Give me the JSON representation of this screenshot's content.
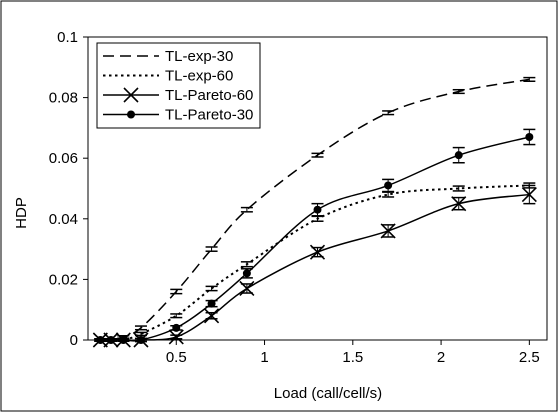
{
  "chart_data": {
    "type": "line",
    "title": "",
    "xlabel": "Load (call/cell/s)",
    "ylabel": "HDP",
    "xlim": [
      0,
      2.6
    ],
    "ylim": [
      0,
      0.1
    ],
    "x_ticks": [
      "0.5",
      "1",
      "1.5",
      "2",
      "2.5"
    ],
    "x_tick_values": [
      0.5,
      1,
      1.5,
      2,
      2.5
    ],
    "y_ticks": [
      "0",
      "0.02",
      "0.04",
      "0.06",
      "0.08",
      "0.1"
    ],
    "y_tick_values": [
      0,
      0.02,
      0.04,
      0.06,
      0.08,
      0.1
    ],
    "grid": false,
    "legend_position": "top-left",
    "series": [
      {
        "name": "TL-exp-30",
        "style": "dashed",
        "marker": "none",
        "x": [
          0.07,
          0.13,
          0.2,
          0.3,
          0.5,
          0.7,
          0.9,
          1.3,
          1.7,
          2.1,
          2.5
        ],
        "y": [
          0.0,
          0.0,
          0.001,
          0.004,
          0.016,
          0.03,
          0.043,
          0.061,
          0.075,
          0.082,
          0.086
        ],
        "err": [
          0.0004,
          0.0004,
          0.0004,
          0.0006,
          0.0007,
          0.0007,
          0.0007,
          0.0006,
          0.0006,
          0.0006,
          0.0006
        ]
      },
      {
        "name": "TL-exp-60",
        "style": "dotted",
        "marker": "none",
        "x": [
          0.07,
          0.13,
          0.2,
          0.3,
          0.5,
          0.7,
          0.9,
          1.3,
          1.7,
          2.1,
          2.5
        ],
        "y": [
          0.0,
          0.0,
          0.0,
          0.002,
          0.008,
          0.017,
          0.025,
          0.04,
          0.048,
          0.05,
          0.051
        ],
        "err": [
          0.0004,
          0.0004,
          0.0004,
          0.0005,
          0.0006,
          0.0007,
          0.0008,
          0.0008,
          0.0008,
          0.0008,
          0.0008
        ]
      },
      {
        "name": "TL-Pareto-60",
        "style": "solid",
        "marker": "x",
        "x": [
          0.07,
          0.13,
          0.2,
          0.3,
          0.5,
          0.7,
          0.9,
          1.3,
          1.7,
          2.1,
          2.5
        ],
        "y": [
          0.0,
          0.0,
          0.0,
          0.0,
          0.001,
          0.008,
          0.017,
          0.029,
          0.036,
          0.045,
          0.048
        ],
        "err": [
          0.0004,
          0.0004,
          0.0004,
          0.0005,
          0.0006,
          0.001,
          0.0015,
          0.0015,
          0.002,
          0.002,
          0.003
        ]
      },
      {
        "name": "TL-Pareto-30",
        "style": "solid",
        "marker": "dot",
        "x": [
          0.07,
          0.13,
          0.2,
          0.3,
          0.5,
          0.7,
          0.9,
          1.3,
          1.7,
          2.1,
          2.5
        ],
        "y": [
          0.0,
          0.0,
          0.0,
          0.0,
          0.004,
          0.012,
          0.022,
          0.043,
          0.051,
          0.061,
          0.067
        ],
        "err": [
          0.0004,
          0.0004,
          0.0004,
          0.0005,
          0.0007,
          0.001,
          0.0015,
          0.002,
          0.002,
          0.0025,
          0.0025
        ]
      }
    ]
  }
}
